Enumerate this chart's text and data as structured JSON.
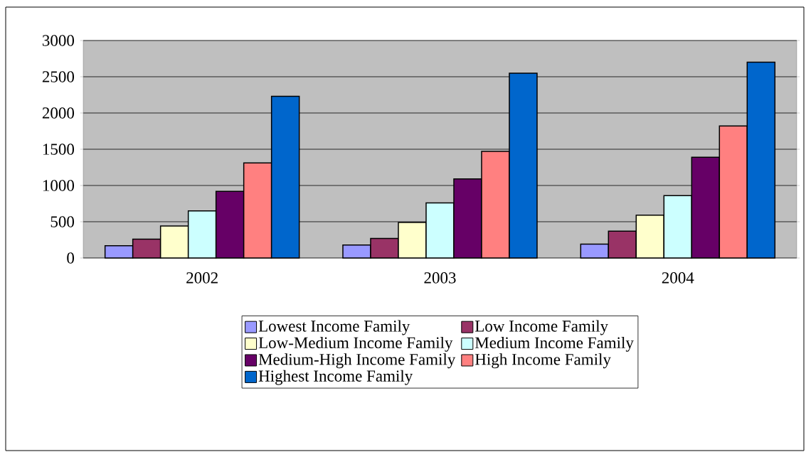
{
  "chart_data": {
    "type": "bar",
    "categories": [
      "2002",
      "2003",
      "2004"
    ],
    "series": [
      {
        "name": "Lowest Income Family",
        "color": "#9999ff",
        "values": [
          170,
          180,
          190
        ]
      },
      {
        "name": "Low Income Family",
        "color": "#993366",
        "values": [
          260,
          270,
          370
        ]
      },
      {
        "name": "Low-Medium Income Family",
        "color": "#ffffcc",
        "values": [
          440,
          490,
          590
        ]
      },
      {
        "name": "Medium Income Family",
        "color": "#ccffff",
        "values": [
          650,
          760,
          860
        ]
      },
      {
        "name": "Medium-High Income Family",
        "color": "#660066",
        "values": [
          920,
          1090,
          1390
        ]
      },
      {
        "name": "High Income Family",
        "color": "#ff8080",
        "values": [
          1310,
          1470,
          1820
        ]
      },
      {
        "name": "Highest Income Family",
        "color": "#0066cc",
        "values": [
          2230,
          2550,
          2700
        ]
      }
    ],
    "ylim": [
      0,
      3000
    ],
    "yticks": [
      0,
      500,
      1000,
      1500,
      2000,
      2500,
      3000
    ],
    "grid": "y",
    "legend": "bottom"
  }
}
